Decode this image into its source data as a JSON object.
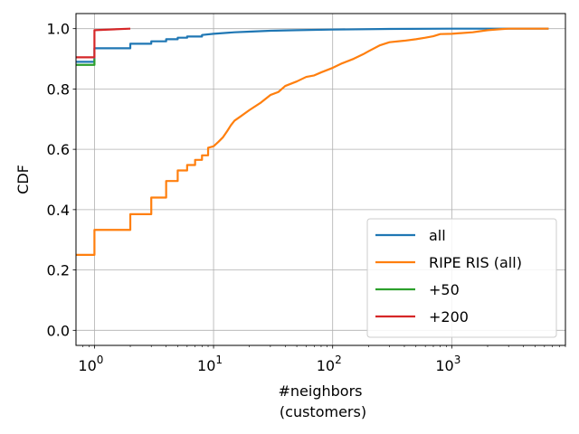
{
  "chart_data": {
    "type": "line",
    "step": true,
    "xlabel_lines": [
      "#neighbors",
      "(customers)"
    ],
    "ylabel": "CDF",
    "x_scale": "log",
    "xlim": [
      0.7,
      9000
    ],
    "ylim": [
      -0.05,
      1.05
    ],
    "x_ticks": [
      {
        "value": 1,
        "base": "10",
        "exp": "0"
      },
      {
        "value": 10,
        "base": "10",
        "exp": "1"
      },
      {
        "value": 100,
        "base": "10",
        "exp": "2"
      },
      {
        "value": 1000,
        "base": "10",
        "exp": "3"
      }
    ],
    "y_ticks": [
      {
        "value": 0.0,
        "label": "0.0"
      },
      {
        "value": 0.2,
        "label": "0.2"
      },
      {
        "value": 0.4,
        "label": "0.4"
      },
      {
        "value": 0.6,
        "label": "0.6"
      },
      {
        "value": 0.8,
        "label": "0.8"
      },
      {
        "value": 1.0,
        "label": "1.0"
      }
    ],
    "grid": true,
    "legend_position": "lower-right",
    "series": [
      {
        "name": "all",
        "color": "#1f77b4",
        "points": [
          [
            0.7,
            0.89
          ],
          [
            1,
            0.89
          ],
          [
            1,
            0.935
          ],
          [
            2,
            0.935
          ],
          [
            2,
            0.95
          ],
          [
            3,
            0.95
          ],
          [
            3,
            0.958
          ],
          [
            4,
            0.958
          ],
          [
            4,
            0.965
          ],
          [
            5,
            0.965
          ],
          [
            5,
            0.97
          ],
          [
            6,
            0.97
          ],
          [
            6,
            0.974
          ],
          [
            8,
            0.974
          ],
          [
            8,
            0.979
          ],
          [
            10,
            0.983
          ],
          [
            15,
            0.988
          ],
          [
            20,
            0.99
          ],
          [
            30,
            0.993
          ],
          [
            50,
            0.995
          ],
          [
            100,
            0.997
          ],
          [
            300,
            0.999
          ],
          [
            1000,
            1.0
          ],
          [
            6500,
            1.0
          ]
        ]
      },
      {
        "name": "RIPE RIS (all)",
        "color": "#ff7f0e",
        "points": [
          [
            0.7,
            0.25
          ],
          [
            1,
            0.25
          ],
          [
            1,
            0.333
          ],
          [
            2,
            0.333
          ],
          [
            2,
            0.385
          ],
          [
            3,
            0.385
          ],
          [
            3,
            0.44
          ],
          [
            4,
            0.44
          ],
          [
            4,
            0.495
          ],
          [
            5,
            0.495
          ],
          [
            5,
            0.53
          ],
          [
            6,
            0.53
          ],
          [
            6,
            0.548
          ],
          [
            7,
            0.548
          ],
          [
            7,
            0.565
          ],
          [
            8,
            0.565
          ],
          [
            8,
            0.58
          ],
          [
            9,
            0.58
          ],
          [
            9,
            0.605
          ],
          [
            10,
            0.61
          ],
          [
            11,
            0.625
          ],
          [
            12,
            0.64
          ],
          [
            13,
            0.66
          ],
          [
            14,
            0.68
          ],
          [
            15,
            0.695
          ],
          [
            17,
            0.71
          ],
          [
            20,
            0.73
          ],
          [
            25,
            0.755
          ],
          [
            30,
            0.78
          ],
          [
            35,
            0.79
          ],
          [
            40,
            0.81
          ],
          [
            50,
            0.825
          ],
          [
            60,
            0.84
          ],
          [
            70,
            0.845
          ],
          [
            80,
            0.855
          ],
          [
            100,
            0.87
          ],
          [
            120,
            0.885
          ],
          [
            150,
            0.9
          ],
          [
            180,
            0.915
          ],
          [
            200,
            0.925
          ],
          [
            250,
            0.945
          ],
          [
            300,
            0.955
          ],
          [
            400,
            0.96
          ],
          [
            500,
            0.965
          ],
          [
            600,
            0.97
          ],
          [
            700,
            0.975
          ],
          [
            800,
            0.982
          ],
          [
            1000,
            0.983
          ],
          [
            1500,
            0.988
          ],
          [
            2000,
            0.995
          ],
          [
            2500,
            0.998
          ],
          [
            3000,
            1.0
          ],
          [
            6500,
            1.0
          ]
        ]
      },
      {
        "name": "+50",
        "color": "#2ca02c",
        "points": [
          [
            0.7,
            0.88
          ],
          [
            1,
            0.88
          ],
          [
            1,
            0.9
          ]
        ]
      },
      {
        "name": "+200",
        "color": "#d62728",
        "points": [
          [
            0.7,
            0.905
          ],
          [
            1,
            0.905
          ],
          [
            1,
            0.995
          ],
          [
            2,
            1.0
          ]
        ]
      }
    ]
  }
}
